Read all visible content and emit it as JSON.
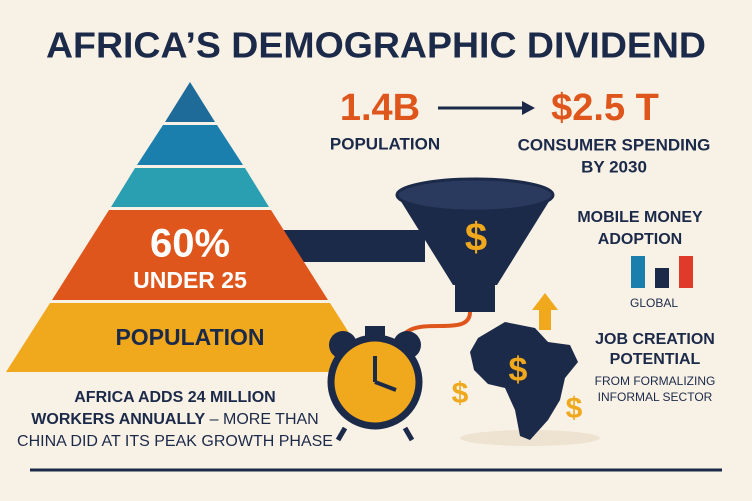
{
  "title": "AFRICA’S DEMOGRAPHIC DIVIDEND",
  "pyramid": {
    "stat": "60%",
    "stat_label": "UNDER 25",
    "base_label": "POPULATION"
  },
  "population": {
    "value": "1.4B",
    "label": "POPULATION"
  },
  "spending": {
    "value": "$2.5 T",
    "label_lines": [
      "CONSUMER SPENDING",
      "BY 2030"
    ]
  },
  "currency_symbol": "$",
  "mobile_money": {
    "title_lines": [
      "MOBILE MONEY",
      "ADOPTION"
    ],
    "caption": "GLOBAL"
  },
  "jobs": {
    "title_lines": [
      "JOB CREATION",
      "POTENTIAL"
    ],
    "subtitle_lines": [
      "FROM FORMALIZING",
      "INFORMAL SECTOR"
    ]
  },
  "footer": {
    "line1": "AFRICA ADDS 24 MILLION",
    "line2_bold": "WORKERS ANNUALLY",
    "line2_rest": " – MORE THAN",
    "line3": "CHINA DID AT ITS PEAK GROWTH PHASE"
  }
}
